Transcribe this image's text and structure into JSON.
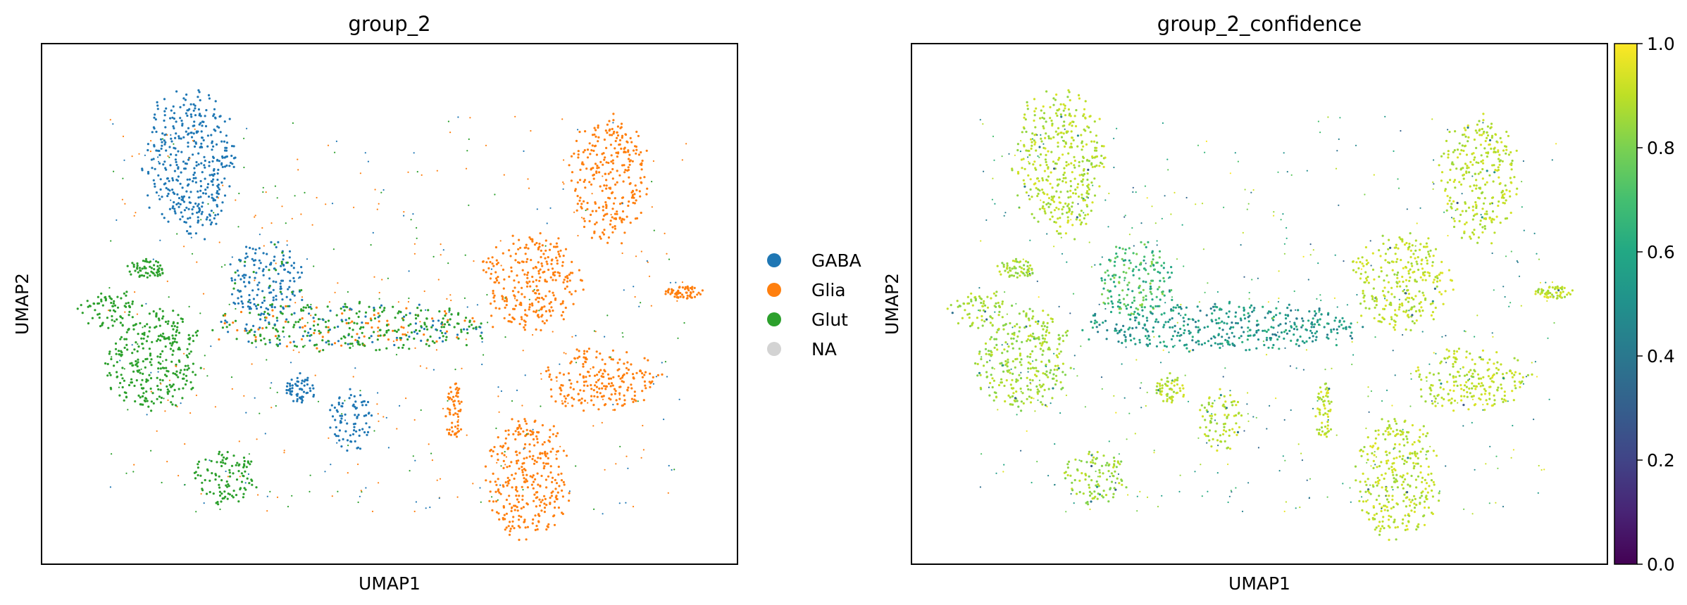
{
  "chart_data": [
    {
      "type": "scatter",
      "title": "group_2",
      "xlabel": "UMAP1",
      "ylabel": "UMAP2",
      "grid": false,
      "ticks": false,
      "legend_position": "right",
      "legend": [
        {
          "label": "GABA",
          "color": "#1f77b4"
        },
        {
          "label": "Glia",
          "color": "#ff7f0e"
        },
        {
          "label": "Glut",
          "color": "#2ca02c"
        },
        {
          "label": "NA",
          "color": "#d3d3d3"
        }
      ],
      "series": [
        {
          "name": "GABA",
          "color": "#1f77b4",
          "clusters": [
            {
              "x": [
                -0.78,
                -0.49
              ],
              "y": [
                0.9,
                0.3
              ]
            },
            {
              "x": [
                -0.52,
                -0.28
              ],
              "y": [
                0.26,
                -0.07
              ]
            },
            {
              "x": [
                -0.2,
                -0.05
              ],
              "y": [
                -0.38,
                -0.62
              ]
            },
            {
              "x": [
                -0.33,
                -0.24
              ],
              "y": [
                -0.3,
                -0.42
              ]
            }
          ]
        },
        {
          "name": "Glia",
          "color": "#ff7f0e",
          "clusters": [
            {
              "x": [
                0.58,
                0.82
              ],
              "y": [
                0.79,
                0.28
              ]
            },
            {
              "x": [
                0.49,
                0.86
              ],
              "y": [
                -0.2,
                -0.45
              ]
            },
            {
              "x": [
                0.31,
                0.57
              ],
              "y": [
                -0.48,
                -1.0
              ]
            },
            {
              "x": [
                0.88,
                1.0
              ],
              "y": [
                0.08,
                0.02
              ]
            },
            {
              "x": [
                0.18,
                0.23
              ],
              "y": [
                -0.35,
                -0.6
              ]
            },
            {
              "x": [
                0.3,
                0.6
              ],
              "y": [
                0.3,
                -0.1
              ]
            }
          ]
        },
        {
          "name": "Glut",
          "color": "#2ca02c",
          "clusters": [
            {
              "x": [
                -0.9,
                -0.6
              ],
              "y": [
                -0.02,
                -0.45
              ]
            },
            {
              "x": [
                -0.63,
                -0.42
              ],
              "y": [
                -0.63,
                -0.85
              ]
            },
            {
              "x": [
                -1.0,
                -0.8
              ],
              "y": [
                0.06,
                -0.1
              ]
            },
            {
              "x": [
                -0.84,
                -0.72
              ],
              "y": [
                0.19,
                0.11
              ]
            },
            {
              "x": [
                -0.55,
                0.34
              ],
              "y": [
                0.0,
                -0.2
              ]
            }
          ]
        }
      ]
    },
    {
      "type": "scatter",
      "title": "group_2_confidence",
      "xlabel": "UMAP1",
      "ylabel": "UMAP2",
      "grid": false,
      "ticks": false,
      "colormap": "viridis",
      "colorbar": {
        "range": [
          0.0,
          1.0
        ],
        "ticks": [
          "0.0",
          "0.2",
          "0.4",
          "0.6",
          "0.8",
          "1.0"
        ]
      },
      "confidence_by_group": {
        "GABA": 0.95,
        "Glia": 0.96,
        "Glut": 0.92,
        "transition": 0.4,
        "GABA_mid": 0.7
      }
    }
  ]
}
